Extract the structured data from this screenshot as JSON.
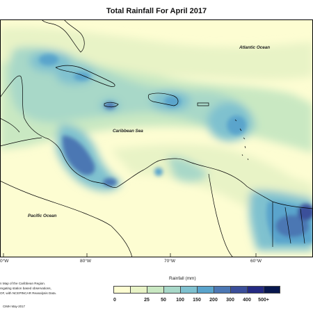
{
  "title": "Total Rainfall For April 2017",
  "map": {
    "labels": {
      "atlantic": "Atlantic Ocean",
      "caribbean": "Caribbean Sea",
      "pacific": "Pacific Ocean"
    },
    "longitude_ticks": [
      "0°W",
      "80°W",
      "70°W",
      "60°W"
    ]
  },
  "legend": {
    "title": "Rainfall (mm)",
    "colors": [
      "#fdfdd2",
      "#e8f3c6",
      "#c9e8c2",
      "#a8d8c8",
      "#7fc1cf",
      "#5aa4cc",
      "#4c77b3",
      "#3b4f9a",
      "#242a82",
      "#08174e"
    ],
    "labels": [
      "0",
      "25",
      "50",
      "100",
      "150",
      "200",
      "300",
      "400",
      "500+"
    ]
  },
  "notes": [
    "n Map of the Caribbean Region.",
    "regating station based observations,",
    "OF, with NCEPINCAR Reanalysis Data."
  ],
  "credit": "CIMH May-2017"
}
